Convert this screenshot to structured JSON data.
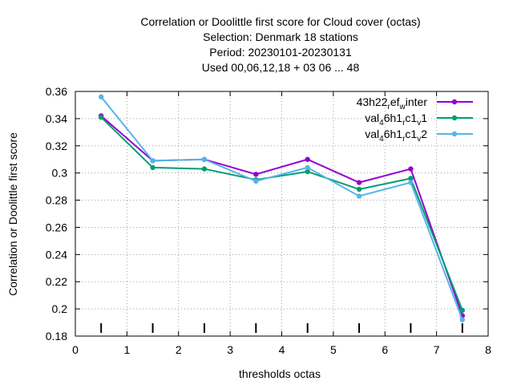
{
  "chart_data": {
    "type": "line",
    "title_lines": [
      "Correlation or Doolittle first score  for Cloud cover (octas)",
      "Selection: Denmark     18 stations",
      "Period: 20230101-20230131",
      "Used  00,06,12,18  + 03 06 ... 48"
    ],
    "xlabel": "thresholds octas",
    "ylabel": "Correlation or Doolittle first score",
    "xlim": [
      0,
      8
    ],
    "ylim": [
      0.18,
      0.36
    ],
    "x_ticks": [
      "0",
      "1",
      "2",
      "3",
      "4",
      "5",
      "6",
      "7",
      "8"
    ],
    "y_ticks": [
      "0.18",
      "0.2",
      "0.22",
      "0.24",
      "0.26",
      "0.28",
      "0.3",
      "0.32",
      "0.34",
      "0.36"
    ],
    "grid": true,
    "legend_position": "top-right",
    "threshold_marks_x": [
      0.5,
      1.5,
      2.5,
      3.5,
      4.5,
      5.5,
      6.5,
      7.5
    ],
    "x": [
      0.5,
      1.5,
      2.5,
      3.5,
      4.5,
      5.5,
      6.5,
      7.5
    ],
    "series": [
      {
        "name": "43h22",
        "name_sub": "r",
        "name_mid": "ef",
        "name_sub2": "w",
        "name_end": "inter",
        "color": "#9400d3",
        "values": [
          0.342,
          0.309,
          0.31,
          0.299,
          0.31,
          0.293,
          0.303,
          0.195
        ]
      },
      {
        "name": "val",
        "name_sub": "4",
        "name_mid": "6h1",
        "name_sub2": "r",
        "name_end": "c1",
        "name_sub3": "v",
        "name_tail": "1",
        "color": "#009e73",
        "values": [
          0.341,
          0.304,
          0.303,
          0.295,
          0.301,
          0.288,
          0.296,
          0.199
        ]
      },
      {
        "name": "val",
        "name_sub": "4",
        "name_mid": "6h1",
        "name_sub2": "r",
        "name_end": "c1",
        "name_sub3": "v",
        "name_tail": "2",
        "color": "#56b4e9",
        "values": [
          0.356,
          0.309,
          0.31,
          0.294,
          0.304,
          0.283,
          0.293,
          0.192
        ]
      }
    ]
  }
}
